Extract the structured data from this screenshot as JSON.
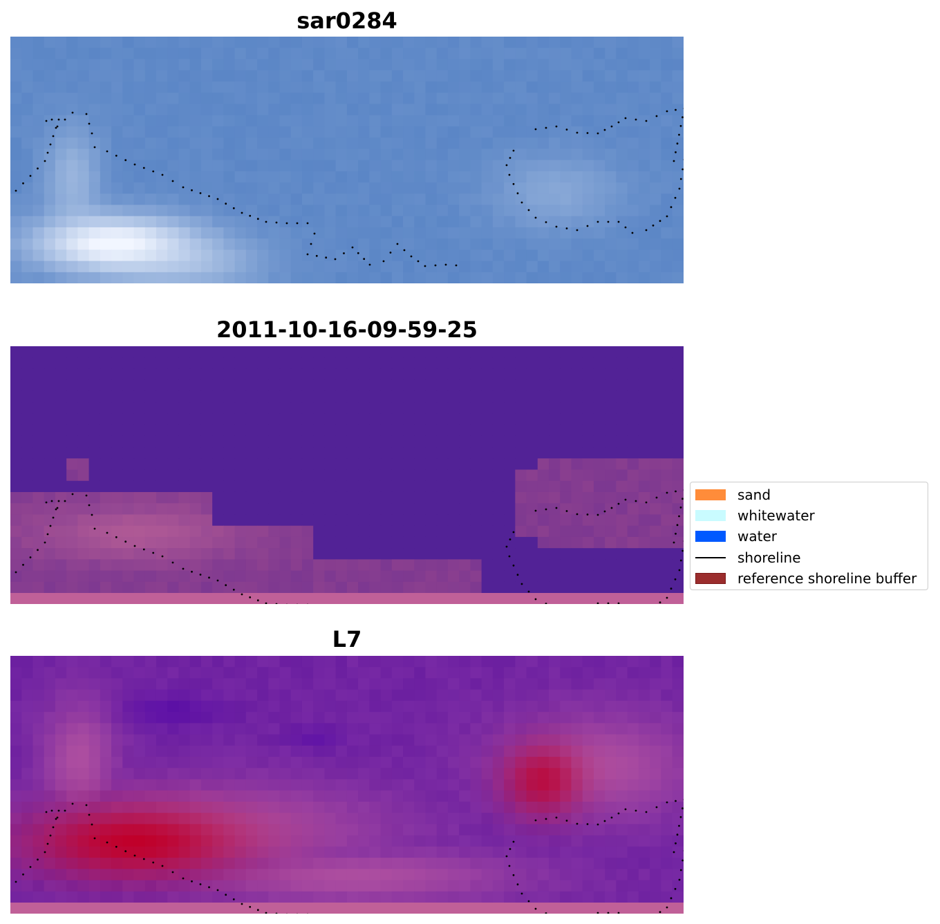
{
  "panels": [
    {
      "title": "sar0284",
      "kind": "rgb"
    },
    {
      "title": "2011-10-16-09-59-25",
      "kind": "classified"
    },
    {
      "title": "L7",
      "kind": "index"
    }
  ],
  "legend": {
    "items": [
      {
        "label": "sand",
        "color": "#ff8c3a",
        "type": "patch"
      },
      {
        "label": "whitewater",
        "color": "#c9fbff",
        "type": "patch"
      },
      {
        "label": "water",
        "color": "#0059ff",
        "type": "patch"
      },
      {
        "label": "shoreline",
        "color": "#000000",
        "type": "line"
      },
      {
        "label": "reference shoreline buffer",
        "color": "#9b2d2d",
        "type": "patch"
      }
    ]
  },
  "colors": {
    "rgb_water": "#5b86c6",
    "rgb_light": "#9fb9df",
    "rgb_white": "#f2f6ff",
    "classified_bg": "#522296",
    "classified_buffer": "#8a3f8f",
    "classified_band": "#c06098",
    "index_bg": "#6b1fa0",
    "index_mid": "#b050a0",
    "index_hot": "#c0002a",
    "shoreline_dots": "#000000"
  }
}
